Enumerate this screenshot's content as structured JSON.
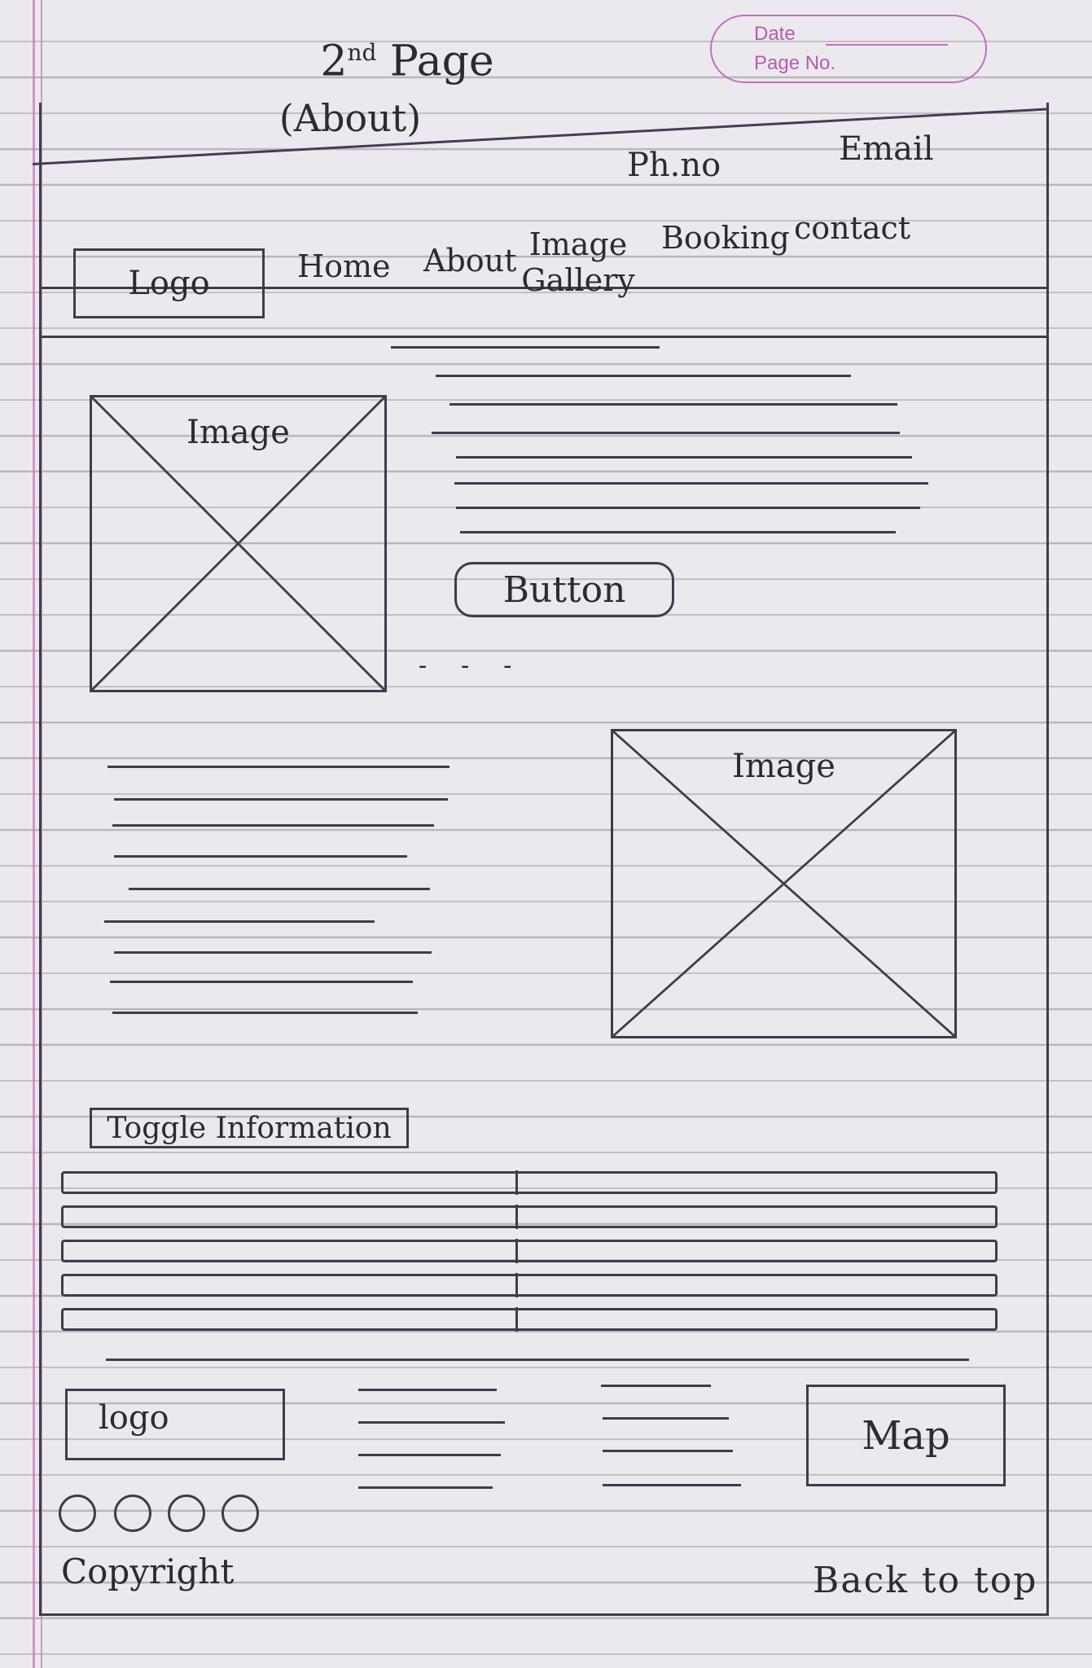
{
  "sketch": {
    "title_main": "2",
    "title_sup": "nd",
    "title_word": " Page",
    "subtitle": "(About)",
    "stamp_date": "Date",
    "stamp_page": "Page No."
  },
  "topbar": {
    "phone": "Ph.no",
    "email": "Email"
  },
  "header": {
    "logo": "Logo",
    "nav": {
      "home": "Home",
      "about": "About",
      "gallery": "Image Gallery",
      "booking": "Booking",
      "contact": "contact"
    }
  },
  "about": {
    "image_1_label": "Image",
    "button_label": "Button",
    "dashes": "- - -",
    "image_2_label": "Image"
  },
  "toggle": {
    "label": "Toggle Information",
    "rows": 5
  },
  "footer": {
    "logo": "logo",
    "map": "Map",
    "copyright": "Copyright",
    "back_to_top": "Back to top"
  }
}
